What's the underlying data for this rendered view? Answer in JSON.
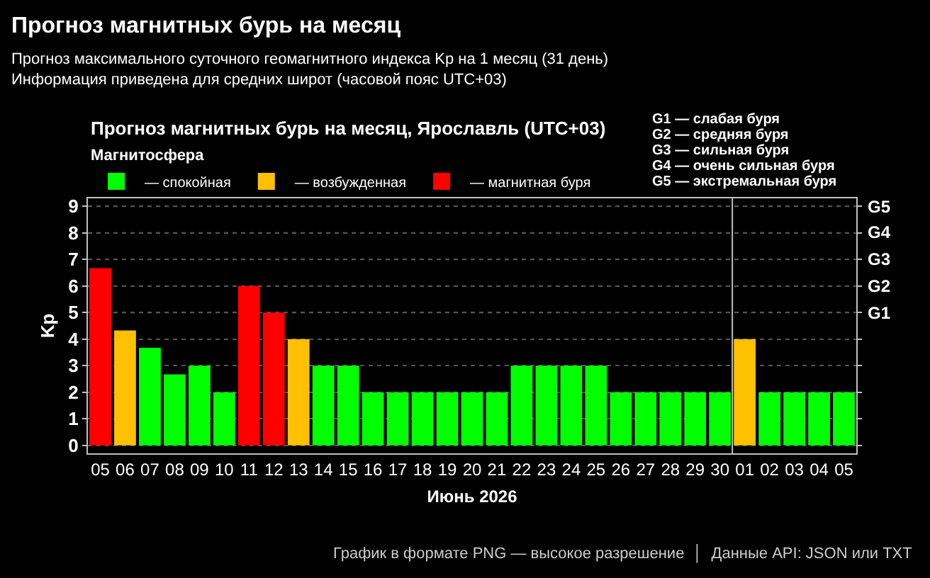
{
  "chart_data": {
    "type": "bar",
    "title": "Прогноз магнитных бурь на месяц",
    "subtitle": "Прогноз максимального суточного геомагнитного индекса Kp на 1 месяц (31 день)\nИнформация приведена для средних широт (часовой пояс UTC+03)",
    "xlabel": "Июнь 2026",
    "ylabel": "Kp",
    "legend_title": "Магнитосфера",
    "categories": [
      "05",
      "06",
      "07",
      "08",
      "09",
      "10",
      "11",
      "12",
      "13",
      "14",
      "15",
      "16",
      "17",
      "18",
      "19",
      "20",
      "21",
      "22",
      "23",
      "24",
      "25",
      "26",
      "27",
      "28",
      "29",
      "30",
      "01",
      "02",
      "03",
      "04",
      "05"
    ],
    "series": [
      {
        "name": "— спокойная",
        "color": "#00ff00",
        "values": [
          null,
          null,
          3.67,
          2.67,
          3,
          2,
          null,
          null,
          null,
          3,
          3,
          2,
          2,
          2,
          2,
          2,
          2,
          3,
          3,
          3,
          3,
          2,
          2,
          2,
          2,
          2,
          null,
          2,
          2,
          2,
          2
        ]
      },
      {
        "name": "— возбужденная",
        "color": "#ffc000",
        "values": [
          null,
          4.33,
          null,
          null,
          null,
          null,
          null,
          null,
          4,
          null,
          null,
          null,
          null,
          null,
          null,
          null,
          null,
          null,
          null,
          null,
          null,
          null,
          null,
          null,
          null,
          null,
          4,
          null,
          null,
          null,
          null
        ]
      },
      {
        "name": "— магнитная буря",
        "color": "#ff0000",
        "values": [
          6.67,
          null,
          null,
          null,
          null,
          null,
          6,
          5,
          null,
          null,
          null,
          null,
          null,
          null,
          null,
          null,
          null,
          null,
          null,
          null,
          null,
          null,
          null,
          null,
          null,
          null,
          null,
          null,
          null,
          null,
          null
        ]
      }
    ],
    "ylim": [
      -0.3,
      9.3
    ],
    "yticks": [
      0,
      1,
      2,
      3,
      4,
      5,
      6,
      7,
      8,
      9
    ],
    "ref_lines": [
      {
        "axis": "x",
        "value": "01",
        "color": "#c0c0c0"
      },
      {
        "axis": "y",
        "value": 5,
        "label": "G1"
      },
      {
        "axis": "y",
        "value": 6,
        "label": "G2"
      },
      {
        "axis": "y",
        "value": 7,
        "label": "G3"
      },
      {
        "axis": "y",
        "value": 8,
        "label": "G4"
      },
      {
        "axis": "y",
        "value": 9,
        "label": "G5"
      }
    ],
    "annotations": [
      "Прогноз магнитных бурь на месяц, Ярославль (UTC+03)",
      "G1 — слабая буря",
      "G2 — средняя буря",
      "G3 — сильная буря",
      "G4 — очень сильная буря",
      "G5 — экстремальная буря",
      "График в формате PNG — высокое разрешение  │  Данные API: JSON или TXT"
    ],
    "grid": "y",
    "legend": "top"
  }
}
